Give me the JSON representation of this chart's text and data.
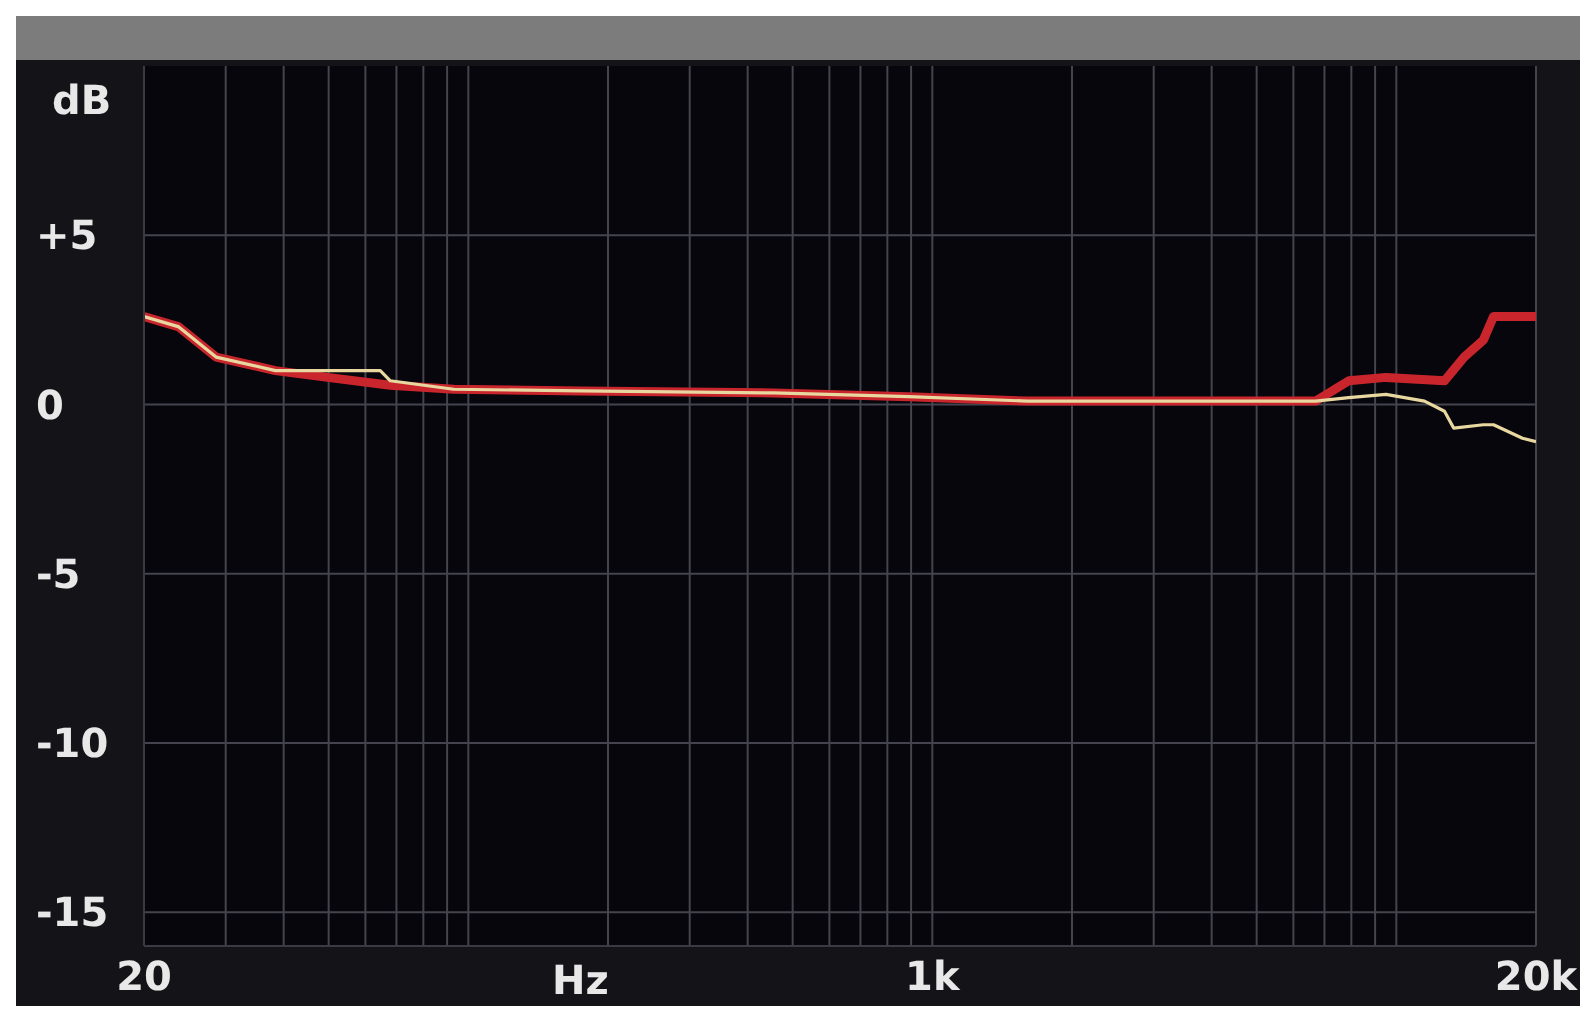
{
  "chart_data": {
    "type": "line",
    "xlabel": "Hz",
    "ylabel": "dB",
    "log": "x",
    "grid": true,
    "marker": "none",
    "line_style": "solid",
    "xlim": [
      20,
      20000
    ],
    "ylim": [
      -16,
      10
    ],
    "xticks": [
      20,
      {
        "value": 30,
        "label": null
      },
      {
        "value": 40,
        "label": null
      },
      {
        "value": 50,
        "label": null
      },
      {
        "value": 60,
        "label": null
      },
      {
        "value": 70,
        "label": null
      },
      {
        "value": 80,
        "label": null
      },
      {
        "value": 90,
        "label": null
      },
      {
        "value": 100,
        "label": null
      },
      {
        "value": 200,
        "label": null
      },
      {
        "value": 300,
        "label": null
      },
      {
        "value": 400,
        "label": null
      },
      {
        "value": 500,
        "label": null
      },
      {
        "value": 600,
        "label": null
      },
      {
        "value": 700,
        "label": null
      },
      {
        "value": 800,
        "label": null
      },
      {
        "value": 900,
        "label": null
      },
      {
        "value": 1000,
        "label": "1k"
      },
      {
        "value": 2000,
        "label": null
      },
      {
        "value": 3000,
        "label": null
      },
      {
        "value": 4000,
        "label": null
      },
      {
        "value": 5000,
        "label": null
      },
      {
        "value": 6000,
        "label": null
      },
      {
        "value": 7000,
        "label": null
      },
      {
        "value": 8000,
        "label": null
      },
      {
        "value": 9000,
        "label": null
      },
      {
        "value": 10000,
        "label": null
      },
      {
        "value": 20000,
        "label": "20k"
      }
    ],
    "yticks": [
      {
        "value": 5,
        "label": "+5"
      },
      0,
      -5,
      -10,
      -15
    ],
    "series": [
      {
        "color": "#e8d8a0",
        "x": [
          20,
          23.7,
          28.6,
          38.4,
          49.7,
          64.6,
          67.9,
          93,
          175,
          455,
          890,
          1600,
          3040,
          6700,
          7900,
          9500,
          11500,
          12700,
          13300,
          15400,
          16200,
          18700,
          20000
        ],
        "values": [
          2.6,
          2.3,
          1.4,
          1.0,
          1.0,
          1.0,
          0.7,
          0.45,
          0.4,
          0.34,
          0.23,
          0.1,
          0.1,
          0.1,
          0.2,
          0.3,
          0.1,
          -0.2,
          -0.7,
          -0.6,
          -0.6,
          -1.0,
          -1.1
        ]
      },
      {
        "color": "#c8262c",
        "x": [
          20,
          23.7,
          28.6,
          38.4,
          49.7,
          67.9,
          93,
          175,
          455,
          890,
          1600,
          3040,
          6700,
          7900,
          9500,
          12700,
          14000,
          15400,
          16200,
          18700,
          20000
        ],
        "values": [
          2.6,
          2.3,
          1.4,
          1.0,
          0.8,
          0.57,
          0.45,
          0.4,
          0.34,
          0.23,
          0.1,
          0.1,
          0.1,
          0.7,
          0.8,
          0.7,
          1.4,
          1.9,
          2.6,
          2.6,
          2.6
        ]
      }
    ]
  }
}
